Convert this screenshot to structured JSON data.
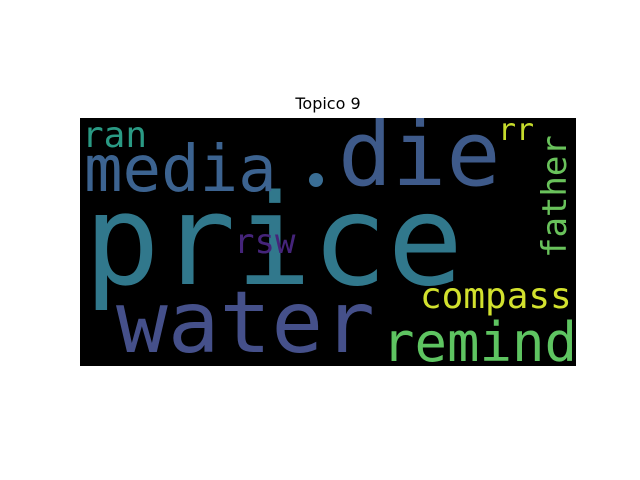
{
  "figure": {
    "title": "Topico 9"
  },
  "wordcloud": {
    "background_color": "#000000",
    "words": [
      {
        "text": "price",
        "color": "#31788c"
      },
      {
        "text": "water",
        "color": "#45508a"
      },
      {
        "text": "die",
        "color": "#3e5a8a"
      },
      {
        "text": "media",
        "color": "#3c6390"
      },
      {
        "text": "remind",
        "color": "#5ec461"
      },
      {
        "text": "compass",
        "color": "#d2e12e"
      },
      {
        "text": "father",
        "color": "#69c25b"
      },
      {
        "text": "ran",
        "color": "#2a9a84"
      },
      {
        "text": "rr",
        "color": "#c6dc2c"
      },
      {
        "text": "rsw",
        "color": "#45247a"
      }
    ],
    "dot_color": "#3a6e95"
  }
}
